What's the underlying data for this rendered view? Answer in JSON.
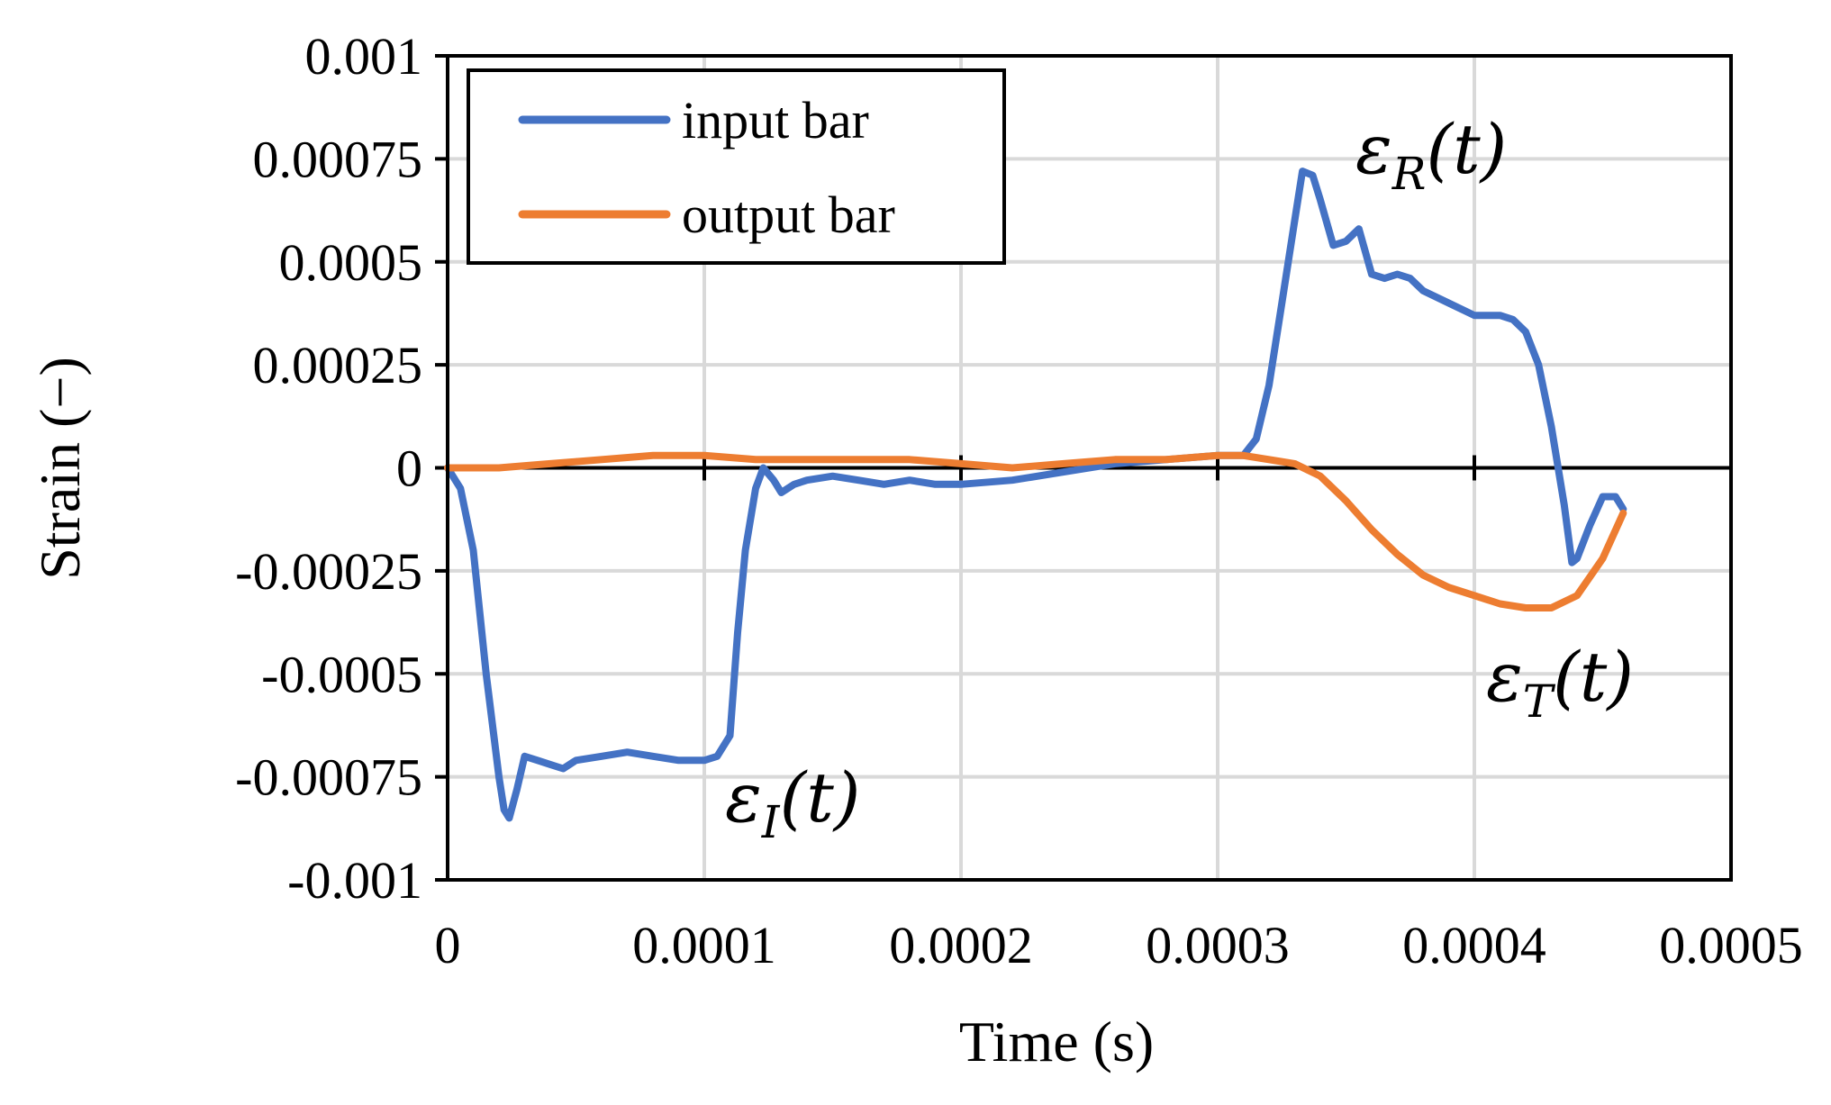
{
  "chart_data": {
    "type": "line",
    "xlabel": "Time (s)",
    "ylabel": "Strain (−)",
    "xlim": [
      0,
      0.0005
    ],
    "ylim": [
      -0.001,
      0.001
    ],
    "grid": true,
    "legend_position": "top-left",
    "x_ticks": [
      0,
      0.0001,
      0.0002,
      0.0003,
      0.0004,
      0.0005
    ],
    "x_tick_labels": [
      "0",
      "0.0001",
      "0.0002",
      "0.0003",
      "0.0004",
      "0.0005"
    ],
    "y_ticks": [
      0.001,
      0.00075,
      0.0005,
      0.00025,
      0,
      -0.00025,
      -0.0005,
      -0.00075,
      -0.001
    ],
    "y_tick_labels": [
      "0.001",
      "0.00075",
      "0.0005",
      "0.00025",
      "0",
      "-0.00025",
      "-0.0005",
      "-0.00075",
      "-0.001"
    ],
    "series": [
      {
        "name": "input bar",
        "color": "#4472C4",
        "x": [
          0,
          5e-06,
          1e-05,
          1.5e-05,
          2e-05,
          2.2e-05,
          2.4e-05,
          2.7e-05,
          3e-05,
          3.5e-05,
          4e-05,
          4.5e-05,
          5e-05,
          6e-05,
          7e-05,
          8e-05,
          9e-05,
          0.0001,
          0.000105,
          0.00011,
          0.000113,
          0.000116,
          0.00012,
          0.000123,
          0.000127,
          0.00013,
          0.000135,
          0.00014,
          0.00015,
          0.00016,
          0.00017,
          0.00018,
          0.00019,
          0.0002,
          0.00022,
          0.00024,
          0.00026,
          0.00028,
          0.0003,
          0.00031,
          0.000315,
          0.00032,
          0.000325,
          0.00033,
          0.000333,
          0.000337,
          0.00034,
          0.000345,
          0.00035,
          0.000355,
          0.00036,
          0.000365,
          0.00037,
          0.000375,
          0.00038,
          0.00039,
          0.0004,
          0.00041,
          0.000415,
          0.00042,
          0.000425,
          0.00043,
          0.000435,
          0.000438,
          0.00044,
          0.000445,
          0.00045,
          0.000455,
          0.000458
        ],
        "values": [
          0,
          -5e-05,
          -0.0002,
          -0.0005,
          -0.00075,
          -0.00083,
          -0.00085,
          -0.00078,
          -0.0007,
          -0.00071,
          -0.00072,
          -0.00073,
          -0.00071,
          -0.0007,
          -0.00069,
          -0.0007,
          -0.00071,
          -0.00071,
          -0.0007,
          -0.00065,
          -0.0004,
          -0.0002,
          -5e-05,
          0,
          -3e-05,
          -6e-05,
          -4e-05,
          -3e-05,
          -2e-05,
          -3e-05,
          -4e-05,
          -3e-05,
          -4e-05,
          -4e-05,
          -3e-05,
          -1e-05,
          1e-05,
          2e-05,
          3e-05,
          3e-05,
          7e-05,
          0.0002,
          0.0004,
          0.0006,
          0.00072,
          0.00071,
          0.00065,
          0.00054,
          0.00055,
          0.00058,
          0.00047,
          0.00046,
          0.00047,
          0.00046,
          0.00043,
          0.0004,
          0.00037,
          0.00037,
          0.00036,
          0.00033,
          0.00025,
          0.0001,
          -9e-05,
          -0.00023,
          -0.00022,
          -0.00014,
          -7e-05,
          -7e-05,
          -0.0001
        ]
      },
      {
        "name": "output bar",
        "color": "#ED7D31",
        "x": [
          0,
          2e-05,
          4e-05,
          6e-05,
          8e-05,
          0.0001,
          0.00012,
          0.00014,
          0.00016,
          0.00018,
          0.0002,
          0.00022,
          0.00024,
          0.00026,
          0.00028,
          0.0003,
          0.00031,
          0.00032,
          0.00033,
          0.00034,
          0.00035,
          0.00036,
          0.00037,
          0.00038,
          0.00039,
          0.0004,
          0.00041,
          0.00042,
          0.00043,
          0.00044,
          0.00045,
          0.000458
        ],
        "values": [
          0,
          0,
          1e-05,
          2e-05,
          3e-05,
          3e-05,
          2e-05,
          2e-05,
          2e-05,
          2e-05,
          1e-05,
          0,
          1e-05,
          2e-05,
          2e-05,
          3e-05,
          3e-05,
          2e-05,
          1e-05,
          -2e-05,
          -8e-05,
          -0.00015,
          -0.00021,
          -0.00026,
          -0.00029,
          -0.00031,
          -0.00033,
          -0.00034,
          -0.00034,
          -0.00031,
          -0.00022,
          -0.00011
        ]
      }
    ],
    "annotations": [
      {
        "symbol": "ε",
        "sub": "R",
        "arg": "(t)"
      },
      {
        "symbol": "ε",
        "sub": "I",
        "arg": "(t)"
      },
      {
        "symbol": "ε",
        "sub": "T",
        "arg": "(t)"
      }
    ]
  }
}
